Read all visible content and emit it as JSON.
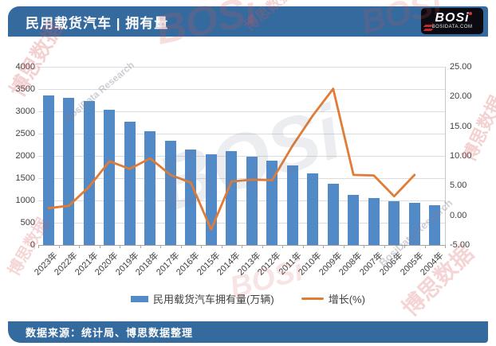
{
  "header": {
    "title": "民用载货汽车 | 拥有量",
    "logo": {
      "text": "BOSi",
      "subtext": "BOSIDATA.COM"
    }
  },
  "footer": {
    "source": "数据来源：统计局、博思数据整理"
  },
  "watermarks": {
    "cn": "博思数据",
    "en": "BosiData Research",
    "logo": "BOSi"
  },
  "theme": {
    "banner_color": "#346A9E",
    "bar_color": "#5289C7",
    "line_color": "#E07C35",
    "grid_color": "#DCDCDC",
    "axis_text_color": "#3F3F3F"
  },
  "chart_data": {
    "type": "bar",
    "subtype": "bar+line combo, dual axis",
    "title": "民用载货汽车 | 拥有量",
    "categories": [
      "2023年",
      "2022年",
      "2021年",
      "2020年",
      "2019年",
      "2018年",
      "2017年",
      "2016年",
      "2015年",
      "2014年",
      "2013年",
      "2012年",
      "2011年",
      "2010年",
      "2009年",
      "2008年",
      "2007年",
      "2006年",
      "2005年",
      "2004年"
    ],
    "series": [
      {
        "name": "民用载货汽车拥有量(万辆)",
        "type": "bar",
        "axis": "left",
        "color": "#5289C7",
        "values": [
          3350,
          3300,
          3230,
          3040,
          2760,
          2560,
          2340,
          2140,
          2030,
          2110,
          1990,
          1890,
          1790,
          1600,
          1370,
          1130,
          1050,
          990,
          950,
          890
        ]
      },
      {
        "name": "增长(%)",
        "type": "line",
        "axis": "right",
        "color": "#E07C35",
        "values": [
          1.2,
          1.6,
          4.8,
          9.1,
          7.8,
          9.6,
          6.8,
          5.5,
          -2.4,
          5.7,
          6.0,
          5.9,
          11.7,
          16.8,
          21.3,
          6.8,
          6.7,
          3.2,
          6.8,
          null
        ]
      }
    ],
    "left_axis": {
      "min": 0,
      "max": 4000,
      "step": 500,
      "ticks": [
        "4000",
        "3500",
        "3000",
        "2500",
        "2000",
        "1500",
        "1000",
        "500",
        "0"
      ]
    },
    "right_axis": {
      "min": -5,
      "max": 25,
      "step": 5,
      "ticks": [
        "25.00",
        "20.00",
        "15.00",
        "10.00",
        "5.00",
        "0.00",
        "-5.00"
      ]
    },
    "grid": true,
    "legend_position": "bottom"
  }
}
